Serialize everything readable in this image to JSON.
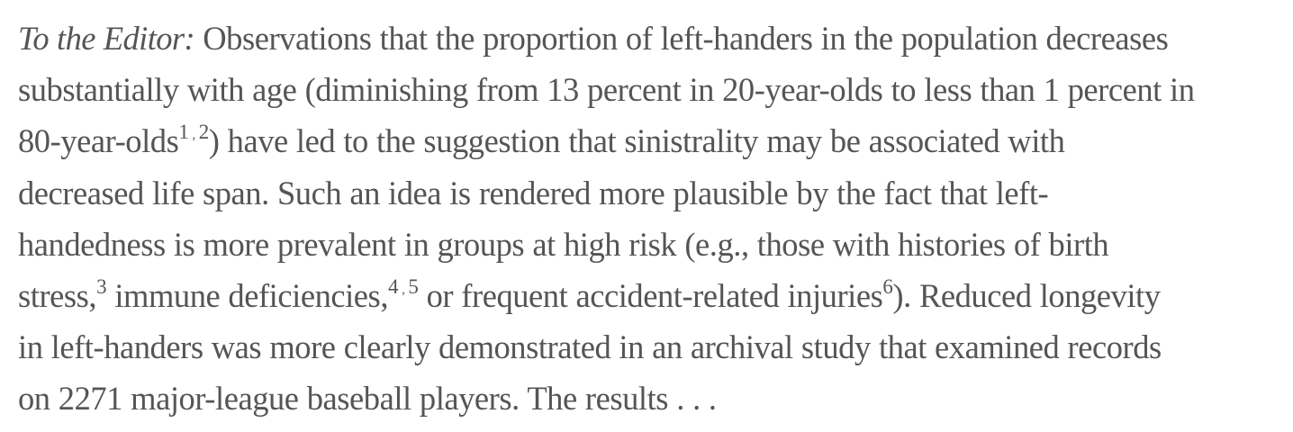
{
  "article": {
    "lead": "To the Editor:",
    "lines": [
      " Observations that the proportion of left-handers in the population decreases",
      "substantially with age (diminishing from 13 percent in 20-year-olds to less than 1 percent in",
      "80-year-olds",
      ") have led to the suggestion that sinistrality may be associated with",
      "decreased life span. Such an idea is rendered more plausible by the fact that left-",
      "handedness is more prevalent in groups at high risk (e.g., those with histories of birth",
      "stress,",
      " immune deficiencies,",
      " or frequent accident-related injuries",
      "). Reduced longevity",
      "in left-handers was more clearly demonstrated in an archival study that examined records",
      "on 2271 major-league baseball players. The results . . ."
    ],
    "refs": {
      "r1": "1",
      "r2": "2",
      "r3": "3",
      "r4": "4",
      "r5": "5",
      "r6": "6",
      "sep": ","
    }
  }
}
